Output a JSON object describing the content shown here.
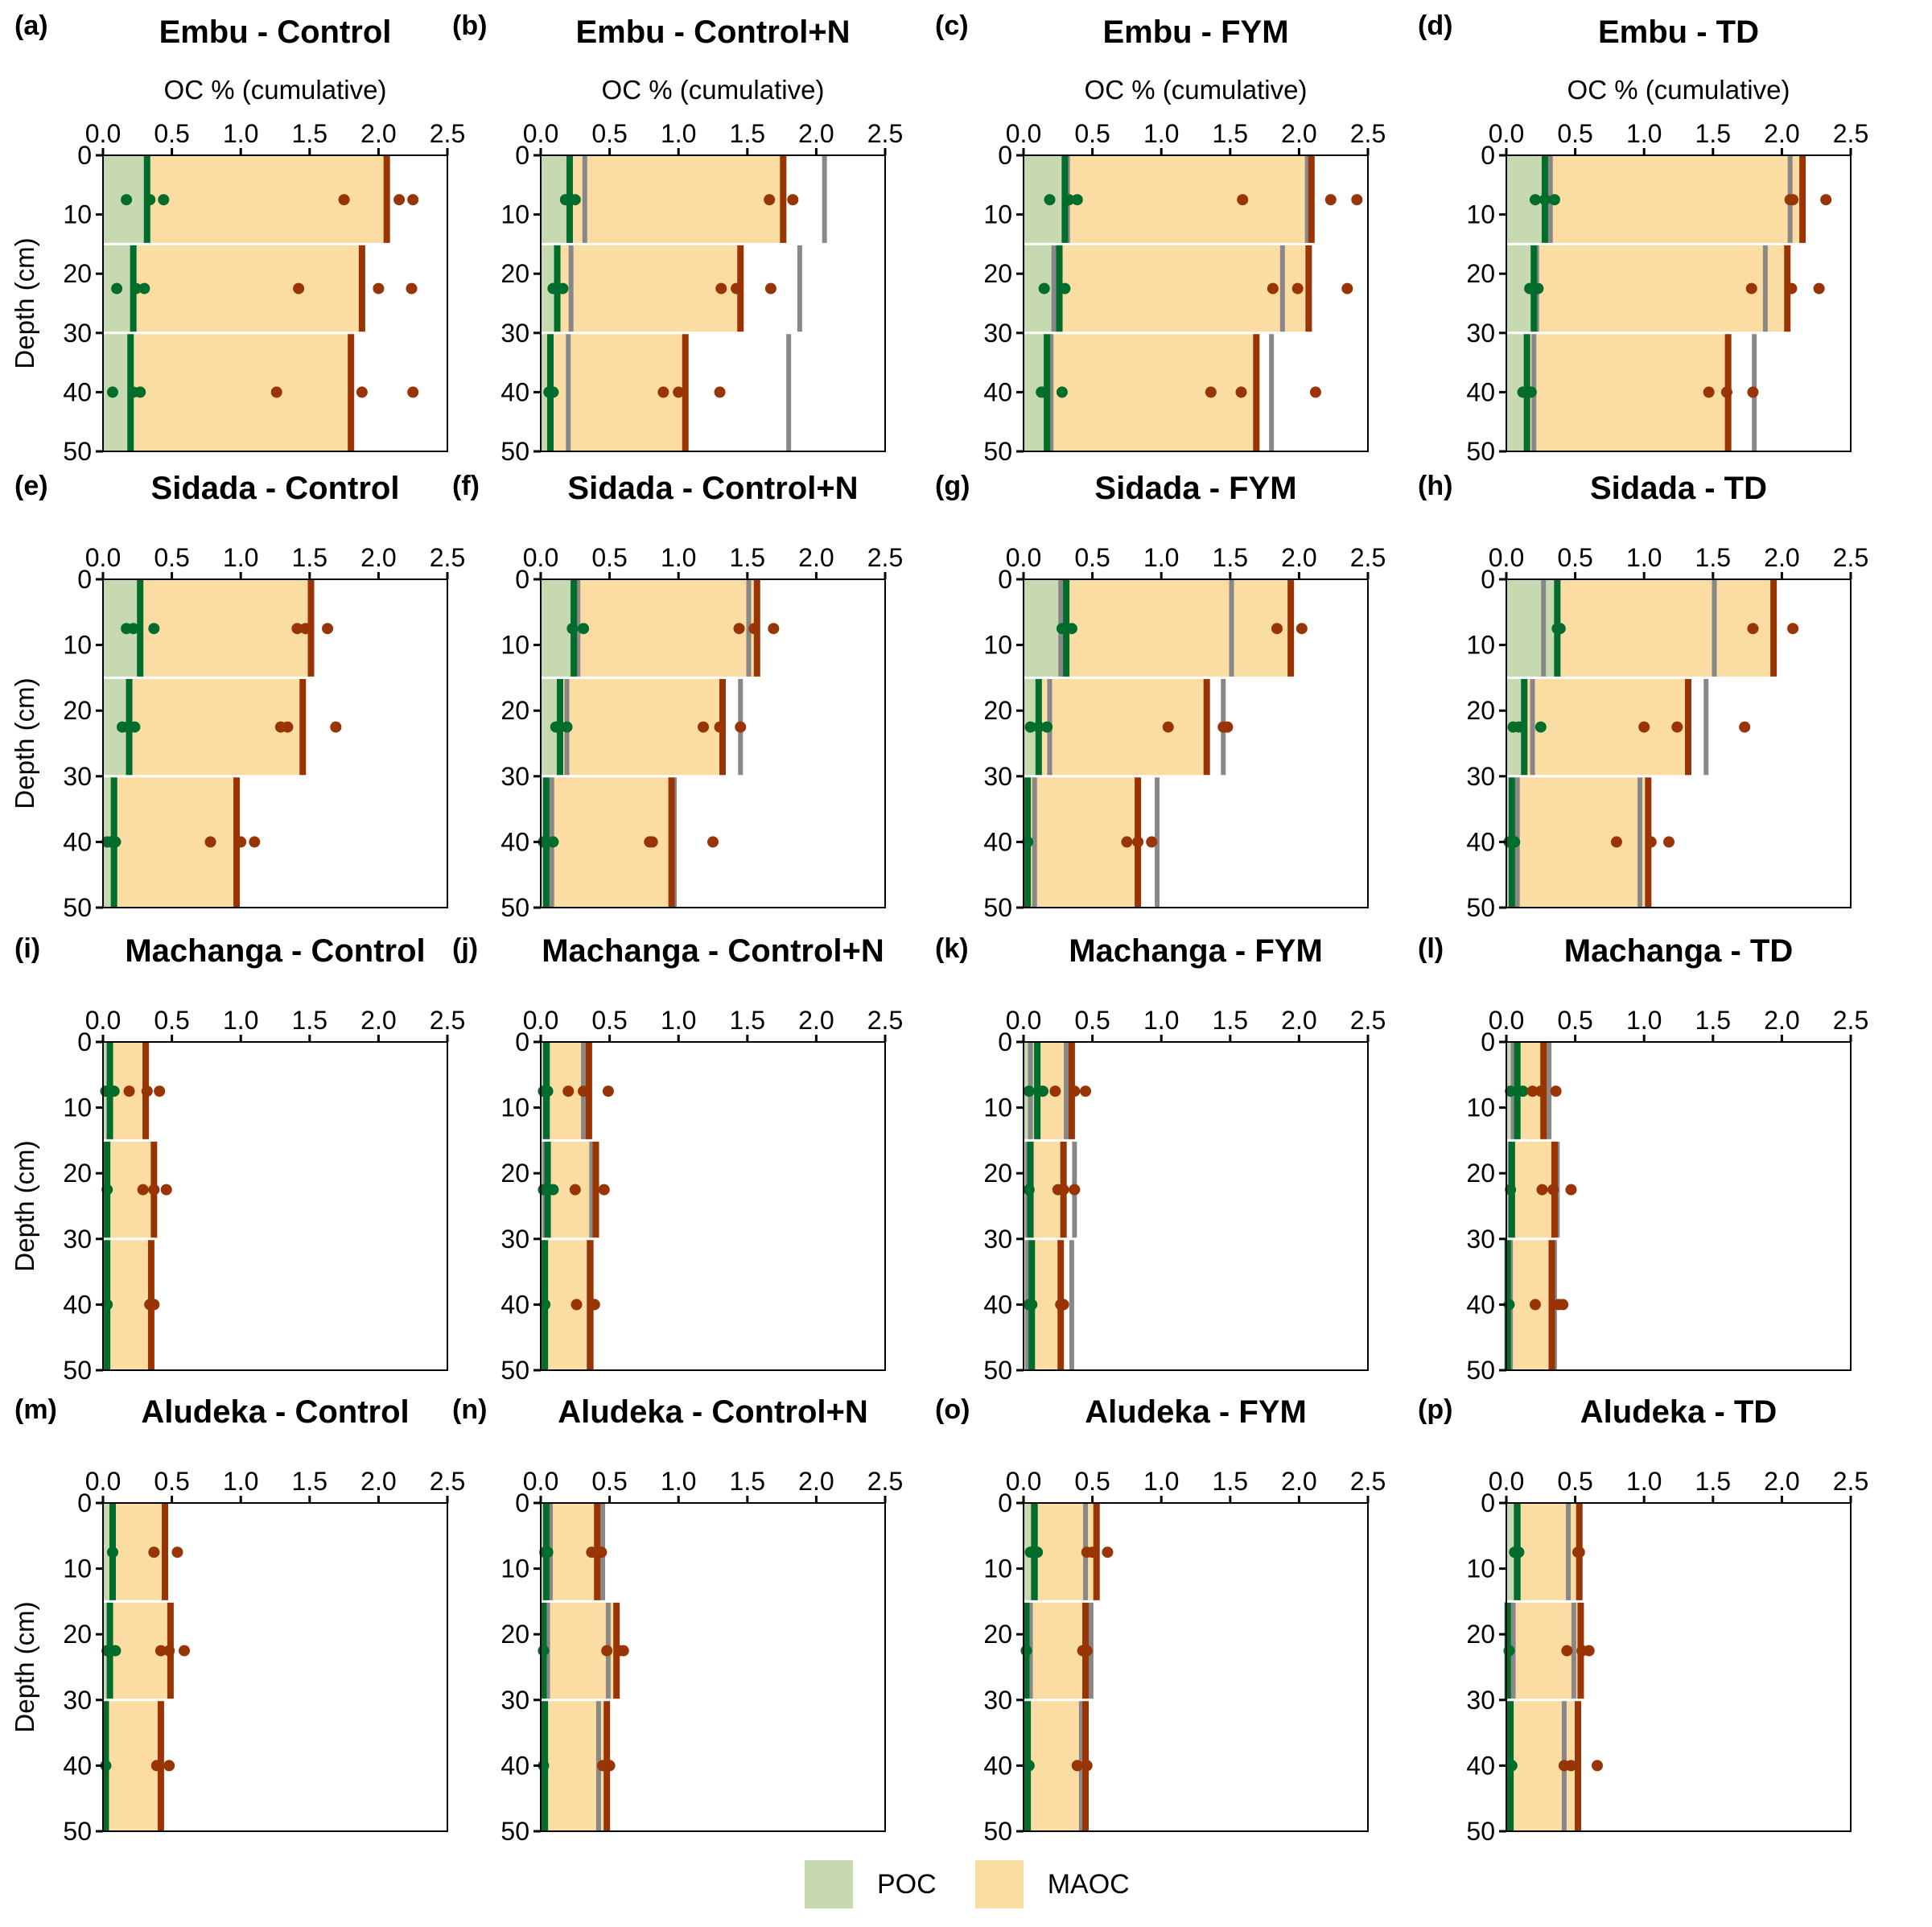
{
  "figure": {
    "x_axis_label": "OC % (cumulative)",
    "y_axis_label": "Depth (cm)",
    "x_ticks": [
      "0.0",
      "0.5",
      "1.0",
      "1.5",
      "2.0",
      "2.5"
    ],
    "y_ticks": [
      "0",
      "10",
      "20",
      "30",
      "40",
      "50"
    ],
    "colors": {
      "poc_fill": "#c6d9b1",
      "maoc_fill": "#fbdda4",
      "poc_line": "#006d2c",
      "total_line": "#993404",
      "control_ref_line": "#888888"
    },
    "legend": [
      {
        "label": "POC",
        "color": "#c6d9b1"
      },
      {
        "label": "MAOC",
        "color": "#fbdda4"
      }
    ]
  },
  "chart_data": {
    "type": "bar",
    "orientation": "horizontal-depth-profile",
    "xlabel": "OC % (cumulative)",
    "ylabel": "Depth (cm)",
    "xlim": [
      0,
      2.5
    ],
    "ylim": [
      50,
      0
    ],
    "layers": [
      {
        "top": 0,
        "bottom": 15,
        "mid": 7.5
      },
      {
        "top": 15,
        "bottom": 30,
        "mid": 22.5
      },
      {
        "top": 30,
        "bottom": 50,
        "mid": 40
      }
    ],
    "legend_position": "bottom-center",
    "panels": [
      {
        "label": "(a)",
        "title": "Embu - Control",
        "show_xlabel": true,
        "show_ylabel": true,
        "poc": [
          0.32,
          0.22,
          0.2
        ],
        "total": [
          2.06,
          1.88,
          1.8
        ],
        "ref_poc": null,
        "ref_total": null,
        "poc_points": [
          [
            0.17,
            0.34,
            0.44
          ],
          [
            0.1,
            0.24,
            0.3
          ],
          [
            0.07,
            0.22,
            0.27
          ]
        ],
        "total_points": [
          [
            1.75,
            2.15,
            2.25
          ],
          [
            1.42,
            2.0,
            2.24
          ],
          [
            1.26,
            1.88,
            2.25
          ]
        ]
      },
      {
        "label": "(b)",
        "title": "Embu - Control+N",
        "show_xlabel": true,
        "show_ylabel": false,
        "poc": [
          0.21,
          0.12,
          0.07
        ],
        "total": [
          1.76,
          1.45,
          1.05
        ],
        "ref_poc": [
          0.32,
          0.22,
          0.2
        ],
        "ref_total": [
          2.06,
          1.88,
          1.8
        ],
        "poc_points": [
          [
            0.18,
            0.21,
            0.25
          ],
          [
            0.09,
            0.12,
            0.16
          ],
          [
            0.06,
            0.07,
            0.09
          ]
        ],
        "total_points": [
          [
            1.66,
            1.83
          ],
          [
            1.31,
            1.42,
            1.67
          ],
          [
            0.89,
            1.0,
            1.3
          ]
        ]
      },
      {
        "label": "(c)",
        "title": "Embu - FYM",
        "show_xlabel": true,
        "show_ylabel": false,
        "poc": [
          0.3,
          0.26,
          0.17
        ],
        "total": [
          2.09,
          2.07,
          1.69
        ],
        "ref_poc": [
          0.32,
          0.22,
          0.2
        ],
        "ref_total": [
          2.06,
          1.88,
          1.8
        ],
        "poc_points": [
          [
            0.19,
            0.33,
            0.39
          ],
          [
            0.15,
            0.3
          ],
          [
            0.13,
            0.15,
            0.28
          ]
        ],
        "total_points": [
          [
            1.59,
            2.23,
            2.42
          ],
          [
            1.81,
            1.99,
            2.35
          ],
          [
            1.36,
            1.58,
            2.12
          ]
        ]
      },
      {
        "label": "(d)",
        "title": "Embu - TD",
        "show_xlabel": true,
        "show_ylabel": false,
        "poc": [
          0.28,
          0.2,
          0.15
        ],
        "total": [
          2.15,
          2.04,
          1.61
        ],
        "ref_poc": [
          0.32,
          0.22,
          0.2
        ],
        "ref_total": [
          2.06,
          1.88,
          1.8
        ],
        "poc_points": [
          [
            0.21,
            0.28,
            0.35
          ],
          [
            0.17,
            0.19,
            0.23
          ],
          [
            0.12,
            0.15,
            0.18
          ]
        ],
        "total_points": [
          [
            2.06,
            2.08,
            2.32
          ],
          [
            1.78,
            2.07,
            2.27
          ],
          [
            1.47,
            1.6,
            1.79
          ]
        ]
      },
      {
        "label": "(e)",
        "title": "Sidada - Control",
        "show_xlabel": false,
        "show_ylabel": true,
        "poc": [
          0.27,
          0.19,
          0.08
        ],
        "total": [
          1.51,
          1.45,
          0.97
        ],
        "ref_poc": null,
        "ref_total": null,
        "poc_points": [
          [
            0.17,
            0.22,
            0.37
          ],
          [
            0.14,
            0.18,
            0.23
          ],
          [
            0.03,
            0.06,
            0.09
          ]
        ],
        "total_points": [
          [
            1.41,
            1.47,
            1.63
          ],
          [
            1.29,
            1.34,
            1.69
          ],
          [
            0.78,
            1.0,
            1.1
          ]
        ]
      },
      {
        "label": "(f)",
        "title": "Sidada - Control+N",
        "show_xlabel": false,
        "show_ylabel": false,
        "poc": [
          0.24,
          0.14,
          0.04
        ],
        "total": [
          1.57,
          1.32,
          0.95
        ],
        "ref_poc": [
          0.27,
          0.19,
          0.08
        ],
        "ref_total": [
          1.51,
          1.45,
          0.97
        ],
        "poc_points": [
          [
            0.23,
            0.31
          ],
          [
            0.11,
            0.14,
            0.19
          ],
          [
            0.02,
            0.09
          ]
        ],
        "total_points": [
          [
            1.44,
            1.55,
            1.69
          ],
          [
            1.18,
            1.3,
            1.45
          ],
          [
            0.79,
            0.81,
            1.25
          ]
        ]
      },
      {
        "label": "(g)",
        "title": "Sidada - FYM",
        "show_xlabel": false,
        "show_ylabel": false,
        "poc": [
          0.31,
          0.11,
          0.03
        ],
        "total": [
          1.94,
          1.33,
          0.83
        ],
        "ref_poc": [
          0.27,
          0.19,
          0.08
        ],
        "ref_total": [
          1.51,
          1.45,
          0.97
        ],
        "poc_points": [
          [
            0.28,
            0.31,
            0.35
          ],
          [
            0.05,
            0.11,
            0.17
          ],
          [
            0.03
          ]
        ],
        "total_points": [
          [
            1.84,
            2.02
          ],
          [
            1.05,
            1.45,
            1.48
          ],
          [
            0.75,
            0.83,
            0.93
          ]
        ]
      },
      {
        "label": "(h)",
        "title": "Sidada - TD",
        "show_xlabel": false,
        "show_ylabel": false,
        "poc": [
          0.37,
          0.13,
          0.04
        ],
        "total": [
          1.94,
          1.32,
          1.03
        ],
        "ref_poc": [
          0.27,
          0.19,
          0.08
        ],
        "ref_total": [
          1.51,
          1.45,
          0.97
        ],
        "poc_points": [
          [
            0.37,
            0.39
          ],
          [
            0.05,
            0.09,
            0.25
          ],
          [
            0.02,
            0.06
          ]
        ],
        "total_points": [
          [
            1.79,
            2.08
          ],
          [
            1.0,
            1.24,
            1.73
          ],
          [
            0.8,
            1.05,
            1.18
          ]
        ]
      },
      {
        "label": "(i)",
        "title": "Machanga - Control",
        "show_xlabel": false,
        "show_ylabel": true,
        "poc": [
          0.05,
          0.03,
          0.03
        ],
        "total": [
          0.31,
          0.37,
          0.35
        ],
        "ref_poc": null,
        "ref_total": null,
        "poc_points": [
          [
            0.02,
            0.08
          ],
          [
            0.03
          ],
          [
            0.03
          ]
        ],
        "total_points": [
          [
            0.19,
            0.32,
            0.41
          ],
          [
            0.29,
            0.37,
            0.46
          ],
          [
            0.34,
            0.37
          ]
        ]
      },
      {
        "label": "(j)",
        "title": "Machanga - Control+N",
        "show_xlabel": false,
        "show_ylabel": false,
        "poc": [
          0.04,
          0.05,
          0.03
        ],
        "total": [
          0.35,
          0.4,
          0.36
        ],
        "ref_poc": [
          0.05,
          0.03,
          0.03
        ],
        "ref_total": [
          0.31,
          0.37,
          0.35
        ],
        "poc_points": [
          [
            0.02,
            0.05
          ],
          [
            0.02,
            0.09
          ],
          [
            0.03
          ]
        ],
        "total_points": [
          [
            0.2,
            0.31,
            0.49
          ],
          [
            0.25,
            0.46
          ],
          [
            0.26,
            0.39
          ]
        ]
      },
      {
        "label": "(k)",
        "title": "Machanga - FYM",
        "show_xlabel": false,
        "show_ylabel": false,
        "poc": [
          0.1,
          0.05,
          0.06
        ],
        "total": [
          0.35,
          0.29,
          0.27
        ],
        "ref_poc": [
          0.05,
          0.03,
          0.03
        ],
        "ref_total": [
          0.31,
          0.37,
          0.35
        ],
        "poc_points": [
          [
            0.04,
            0.14
          ],
          [
            0.04
          ],
          [
            0.04,
            0.06
          ]
        ],
        "total_points": [
          [
            0.23,
            0.37,
            0.45
          ],
          [
            0.25,
            0.29,
            0.37
          ],
          [
            0.27,
            0.29
          ]
        ]
      },
      {
        "label": "(l)",
        "title": "Machanga - TD",
        "show_xlabel": false,
        "show_ylabel": false,
        "poc": [
          0.08,
          0.04,
          0.01
        ],
        "total": [
          0.27,
          0.35,
          0.33
        ],
        "ref_poc": [
          0.05,
          0.03,
          0.03
        ],
        "ref_total": [
          0.31,
          0.37,
          0.35
        ],
        "poc_points": [
          [
            0.03,
            0.12
          ],
          [
            0.03
          ],
          [
            0.02
          ]
        ],
        "total_points": [
          [
            0.19,
            0.25,
            0.36
          ],
          [
            0.26,
            0.34,
            0.47
          ],
          [
            0.21,
            0.38,
            0.41
          ]
        ]
      },
      {
        "label": "(m)",
        "title": "Aludeka - Control",
        "show_xlabel": false,
        "show_ylabel": true,
        "poc": [
          0.07,
          0.05,
          0.02
        ],
        "total": [
          0.45,
          0.49,
          0.42
        ],
        "ref_poc": null,
        "ref_total": null,
        "poc_points": [
          [
            0.07
          ],
          [
            0.03,
            0.09
          ],
          [
            0.02
          ]
        ],
        "total_points": [
          [
            0.37,
            0.54
          ],
          [
            0.42,
            0.48,
            0.59
          ],
          [
            0.39,
            0.48
          ]
        ]
      },
      {
        "label": "(n)",
        "title": "Aludeka - Control+N",
        "show_xlabel": false,
        "show_ylabel": false,
        "poc": [
          0.04,
          0.02,
          0.03
        ],
        "total": [
          0.41,
          0.55,
          0.48
        ],
        "ref_poc": [
          0.07,
          0.05,
          0.02
        ],
        "ref_total": [
          0.45,
          0.49,
          0.42
        ],
        "poc_points": [
          [
            0.03,
            0.05
          ],
          [
            0.02
          ],
          [
            0.02
          ]
        ],
        "total_points": [
          [
            0.37,
            0.44
          ],
          [
            0.48,
            0.57,
            0.6
          ],
          [
            0.45,
            0.5
          ]
        ]
      },
      {
        "label": "(o)",
        "title": "Aludeka - FYM",
        "show_xlabel": false,
        "show_ylabel": false,
        "poc": [
          0.08,
          0.02,
          0.03
        ],
        "total": [
          0.53,
          0.45,
          0.45
        ],
        "ref_poc": [
          0.07,
          0.05,
          0.02
        ],
        "ref_total": [
          0.45,
          0.49,
          0.42
        ],
        "poc_points": [
          [
            0.05,
            0.08,
            0.1
          ],
          [
            0.02
          ],
          [
            0.04
          ]
        ],
        "total_points": [
          [
            0.46,
            0.5,
            0.61
          ],
          [
            0.43,
            0.46
          ],
          [
            0.39,
            0.46
          ]
        ]
      },
      {
        "label": "(p)",
        "title": "Aludeka - TD",
        "show_xlabel": false,
        "show_ylabel": false,
        "poc": [
          0.08,
          0.01,
          0.03
        ],
        "total": [
          0.53,
          0.54,
          0.52
        ],
        "ref_poc": [
          0.07,
          0.05,
          0.02
        ],
        "ref_total": [
          0.45,
          0.49,
          0.42
        ],
        "poc_points": [
          [
            0.06,
            0.09
          ],
          [
            0.02
          ],
          [
            0.04
          ]
        ],
        "total_points": [
          [
            0.52,
            0.53
          ],
          [
            0.44,
            0.55,
            0.6
          ],
          [
            0.42,
            0.47,
            0.66
          ]
        ]
      }
    ]
  }
}
